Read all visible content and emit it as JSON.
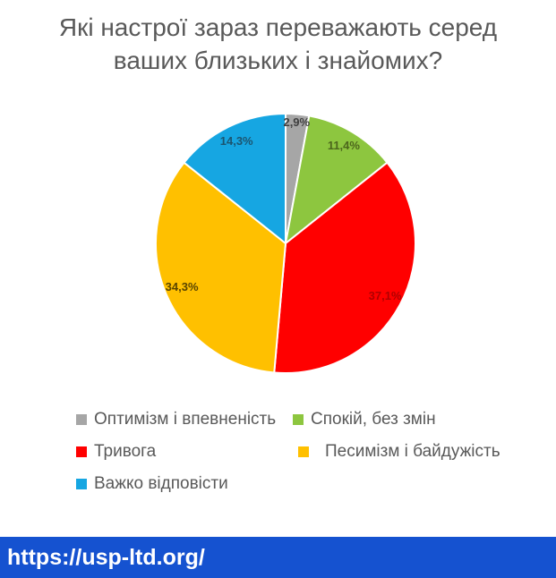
{
  "title": "Які настрої зараз переважають серед ваших близьких і знайомих?",
  "footer": {
    "url": "https://usp-ltd.org/"
  },
  "colors": {
    "title_text": "#595959",
    "legend_text": "#595959",
    "footer_bg": "#1552d0",
    "footer_text": "#ffffff",
    "slice_border": "#ffffff"
  },
  "chart_data": {
    "type": "pie",
    "title": "Які настрої зараз переважають серед ваших близьких і знайомих?",
    "start_angle_deg": 0,
    "direction": "clockwise",
    "data_labels": "percent, comma decimal separator",
    "legend_position": "bottom",
    "legend_columns": 2,
    "slices": [
      {
        "label": "Оптимізм і впевненість",
        "value": 2.9,
        "value_label": "2,9%",
        "color": "#a6a6a6",
        "label_color": "#3f3f3f",
        "label_r": 0.93
      },
      {
        "label": "Спокій, без змін",
        "value": 11.4,
        "value_label": "11,4%",
        "color": "#8dc63f",
        "label_color": "#4c661c",
        "label_r": 0.87
      },
      {
        "label": "Тривога",
        "value": 37.1,
        "value_label": "37,1%",
        "color": "#ff0000",
        "label_color": "#b00000",
        "label_r": 0.87
      },
      {
        "label": "Песимізм і байдужість",
        "value": 34.3,
        "value_label": "34,3%",
        "color": "#ffc000",
        "label_color": "#584400",
        "label_r": 0.87
      },
      {
        "label": "Важко відповісти",
        "value": 14.3,
        "value_label": "14,3%",
        "color": "#16a6e2",
        "label_color": "#1c5570",
        "label_r": 0.87
      }
    ]
  }
}
